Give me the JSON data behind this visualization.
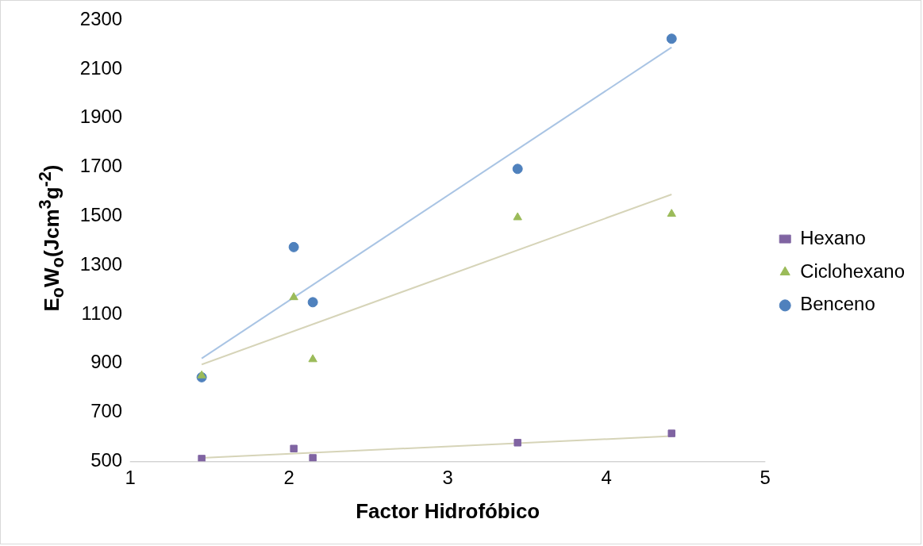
{
  "chart_data": {
    "type": "scatter",
    "xlabel": "Factor Hidrofóbico",
    "ylabel": "E$_{o}$W$_{o}$(Jcm$^{3}$g$^{-2}$)",
    "xlim": [
      1,
      5
    ],
    "xticks": [
      1,
      2,
      3,
      4,
      5
    ],
    "ylim": [
      500,
      2300
    ],
    "yticks": [
      500,
      700,
      900,
      1100,
      1300,
      1500,
      1700,
      1900,
      2100,
      2300
    ],
    "legend": "right",
    "series": [
      {
        "name": "Benceno",
        "color": "#4f81bd",
        "marker": "circle",
        "x": [
          1.45,
          2.03,
          2.15,
          3.44,
          4.41
        ],
        "values": [
          843,
          1374,
          1149,
          1693,
          2224
        ]
      },
      {
        "name": "Ciclohexano",
        "color": "#9bbb59",
        "marker": "triangle",
        "x": [
          1.45,
          2.03,
          2.15,
          3.44,
          4.41
        ],
        "values": [
          850,
          1169,
          916,
          1495,
          1509
        ]
      },
      {
        "name": "Hexano",
        "color": "#8064a2",
        "marker": "square",
        "x": [
          1.45,
          2.03,
          2.15,
          3.44,
          4.41
        ],
        "values": [
          511,
          552,
          514,
          576,
          614
        ]
      },
      {
        "type": "line",
        "color": "#a9c4e4",
        "x": [
          1.45,
          4.41
        ],
        "values": [
          920,
          2189
        ]
      },
      {
        "type": "line",
        "color": "#d6d4b8",
        "x": [
          1.45,
          4.41
        ],
        "values": [
          895,
          1589
        ]
      },
      {
        "type": "line",
        "color": "#d6d4b8",
        "x": [
          1.45,
          4.41
        ],
        "values": [
          514,
          603
        ]
      }
    ]
  }
}
